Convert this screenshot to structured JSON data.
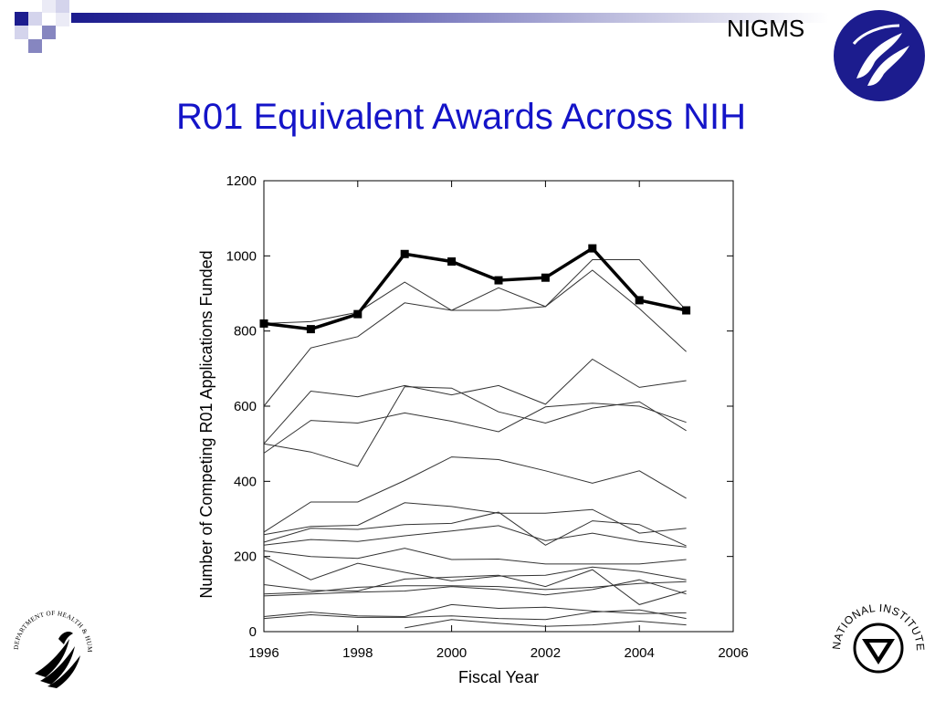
{
  "header": {
    "org_label": "NIGMS"
  },
  "slide": {
    "title": "R01 Equivalent Awards Across NIH"
  },
  "logos": {
    "hhs": "DEPARTMENT OF HEALTH & HUMAN SERVICES · USA",
    "nih": "NATIONAL INSTITUTES OF HEALTH"
  },
  "colors": {
    "title": "#1414c8",
    "brand_navy": "#1c1c8e",
    "series_thin": "#333333",
    "series_bold": "#000000"
  },
  "chart_data": {
    "type": "line",
    "xlabel": "Fiscal Year",
    "ylabel": "Number of Competing R01 Applications Funded",
    "xlim": [
      1996,
      2006
    ],
    "ylim": [
      0,
      1200
    ],
    "xticks": [
      1996,
      1998,
      2000,
      2002,
      2004,
      2006
    ],
    "yticks": [
      0,
      200,
      400,
      600,
      800,
      1000,
      1200
    ],
    "grid": false,
    "legend": "none",
    "x": [
      1996,
      1997,
      1998,
      1999,
      2000,
      2001,
      2002,
      2003,
      2004,
      2005
    ],
    "highlight_series": {
      "values": [
        820,
        805,
        845,
        1005,
        985,
        935,
        942,
        1020,
        882,
        855
      ]
    },
    "series": [
      {
        "values": [
          [
            1996,
            820
          ],
          [
            1997,
            825
          ],
          [
            1998,
            850
          ],
          [
            1999,
            930
          ],
          [
            2000,
            855
          ],
          [
            2001,
            915
          ],
          [
            2002,
            865
          ],
          [
            2003,
            990
          ],
          [
            2004,
            990
          ],
          [
            2005,
            855
          ]
        ]
      },
      {
        "values": [
          [
            1996,
            600
          ],
          [
            1997,
            755
          ],
          [
            1998,
            785
          ],
          [
            1999,
            875
          ],
          [
            2000,
            855
          ],
          [
            2001,
            855
          ],
          [
            2002,
            865
          ],
          [
            2003,
            962
          ],
          [
            2004,
            860
          ],
          [
            2005,
            745
          ]
        ]
      },
      {
        "values": [
          [
            1996,
            500
          ],
          [
            1997,
            640
          ],
          [
            1998,
            625
          ],
          [
            1999,
            655
          ],
          [
            2000,
            630
          ],
          [
            2001,
            655
          ],
          [
            2002,
            605
          ],
          [
            2003,
            725
          ],
          [
            2004,
            650
          ],
          [
            2005,
            668
          ]
        ]
      },
      {
        "values": [
          [
            1996,
            475
          ],
          [
            1997,
            562
          ],
          [
            1998,
            555
          ],
          [
            1999,
            582
          ],
          [
            2000,
            560
          ],
          [
            2001,
            532
          ],
          [
            2002,
            598
          ],
          [
            2003,
            608
          ],
          [
            2004,
            600
          ],
          [
            2005,
            557
          ]
        ]
      },
      {
        "values": [
          [
            1996,
            500
          ],
          [
            1997,
            478
          ],
          [
            1998,
            440
          ],
          [
            1999,
            652
          ],
          [
            2000,
            648
          ],
          [
            2001,
            585
          ],
          [
            2002,
            555
          ],
          [
            2003,
            595
          ],
          [
            2004,
            612
          ],
          [
            2005,
            535
          ]
        ]
      },
      {
        "values": [
          [
            1996,
            265
          ],
          [
            1997,
            345
          ],
          [
            1998,
            345
          ],
          [
            1999,
            402
          ],
          [
            2000,
            465
          ],
          [
            2001,
            458
          ],
          [
            2002,
            428
          ],
          [
            2003,
            395
          ],
          [
            2004,
            428
          ],
          [
            2005,
            355
          ]
        ]
      },
      {
        "values": [
          [
            1996,
            258
          ],
          [
            1997,
            280
          ],
          [
            1998,
            283
          ],
          [
            1999,
            343
          ],
          [
            2000,
            333
          ],
          [
            2001,
            315
          ],
          [
            2002,
            315
          ],
          [
            2003,
            325
          ],
          [
            2004,
            262
          ],
          [
            2005,
            275
          ]
        ]
      },
      {
        "values": [
          [
            1996,
            238
          ],
          [
            1997,
            275
          ],
          [
            1998,
            272
          ],
          [
            1999,
            285
          ],
          [
            2000,
            288
          ],
          [
            2001,
            318
          ],
          [
            2002,
            230
          ],
          [
            2003,
            295
          ],
          [
            2004,
            285
          ],
          [
            2005,
            228
          ]
        ]
      },
      {
        "values": [
          [
            1996,
            230
          ],
          [
            1997,
            245
          ],
          [
            1998,
            240
          ],
          [
            1999,
            255
          ],
          [
            2000,
            268
          ],
          [
            2001,
            282
          ],
          [
            2002,
            242
          ],
          [
            2003,
            262
          ],
          [
            2004,
            240
          ],
          [
            2005,
            225
          ]
        ]
      },
      {
        "values": [
          [
            1996,
            215
          ],
          [
            1997,
            200
          ],
          [
            1998,
            195
          ],
          [
            1999,
            222
          ],
          [
            2000,
            192
          ],
          [
            2001,
            193
          ],
          [
            2002,
            180
          ],
          [
            2003,
            180
          ],
          [
            2004,
            180
          ],
          [
            2005,
            192
          ]
        ]
      },
      {
        "values": [
          [
            1996,
            200
          ],
          [
            1997,
            138
          ],
          [
            1998,
            182
          ],
          [
            1999,
            158
          ],
          [
            2000,
            135
          ],
          [
            2001,
            148
          ],
          [
            2002,
            150
          ],
          [
            2003,
            172
          ],
          [
            2004,
            160
          ],
          [
            2005,
            138
          ]
        ]
      },
      {
        "values": [
          [
            1996,
            125
          ],
          [
            1997,
            110
          ],
          [
            1998,
            108
          ],
          [
            1999,
            140
          ],
          [
            2000,
            145
          ],
          [
            2001,
            150
          ],
          [
            2002,
            120
          ],
          [
            2003,
            165
          ],
          [
            2004,
            72
          ],
          [
            2005,
            108
          ]
        ]
      },
      {
        "values": [
          [
            1996,
            100
          ],
          [
            1997,
            105
          ],
          [
            1998,
            118
          ],
          [
            1999,
            122
          ],
          [
            2000,
            122
          ],
          [
            2001,
            120
          ],
          [
            2002,
            112
          ],
          [
            2003,
            118
          ],
          [
            2004,
            128
          ],
          [
            2005,
            133
          ]
        ]
      },
      {
        "values": [
          [
            1996,
            95
          ],
          [
            1997,
            100
          ],
          [
            1998,
            105
          ],
          [
            1999,
            108
          ],
          [
            2000,
            120
          ],
          [
            2001,
            112
          ],
          [
            2002,
            98
          ],
          [
            2003,
            112
          ],
          [
            2004,
            138
          ],
          [
            2005,
            100
          ]
        ]
      },
      {
        "values": [
          [
            1996,
            40
          ],
          [
            1997,
            52
          ],
          [
            1998,
            42
          ],
          [
            1999,
            40
          ],
          [
            2000,
            72
          ],
          [
            2001,
            62
          ],
          [
            2002,
            65
          ],
          [
            2003,
            55
          ],
          [
            2004,
            48
          ],
          [
            2005,
            50
          ]
        ]
      },
      {
        "values": [
          [
            1996,
            35
          ],
          [
            1997,
            45
          ],
          [
            1998,
            38
          ],
          [
            1999,
            38
          ],
          [
            2000,
            42
          ],
          [
            2001,
            35
          ],
          [
            2002,
            32
          ],
          [
            2003,
            52
          ],
          [
            2004,
            58
          ],
          [
            2005,
            35
          ]
        ]
      },
      {
        "values": [
          [
            1999,
            10
          ],
          [
            2000,
            32
          ],
          [
            2001,
            22
          ],
          [
            2002,
            14
          ],
          [
            2003,
            18
          ],
          [
            2004,
            28
          ],
          [
            2005,
            18
          ]
        ]
      }
    ]
  }
}
